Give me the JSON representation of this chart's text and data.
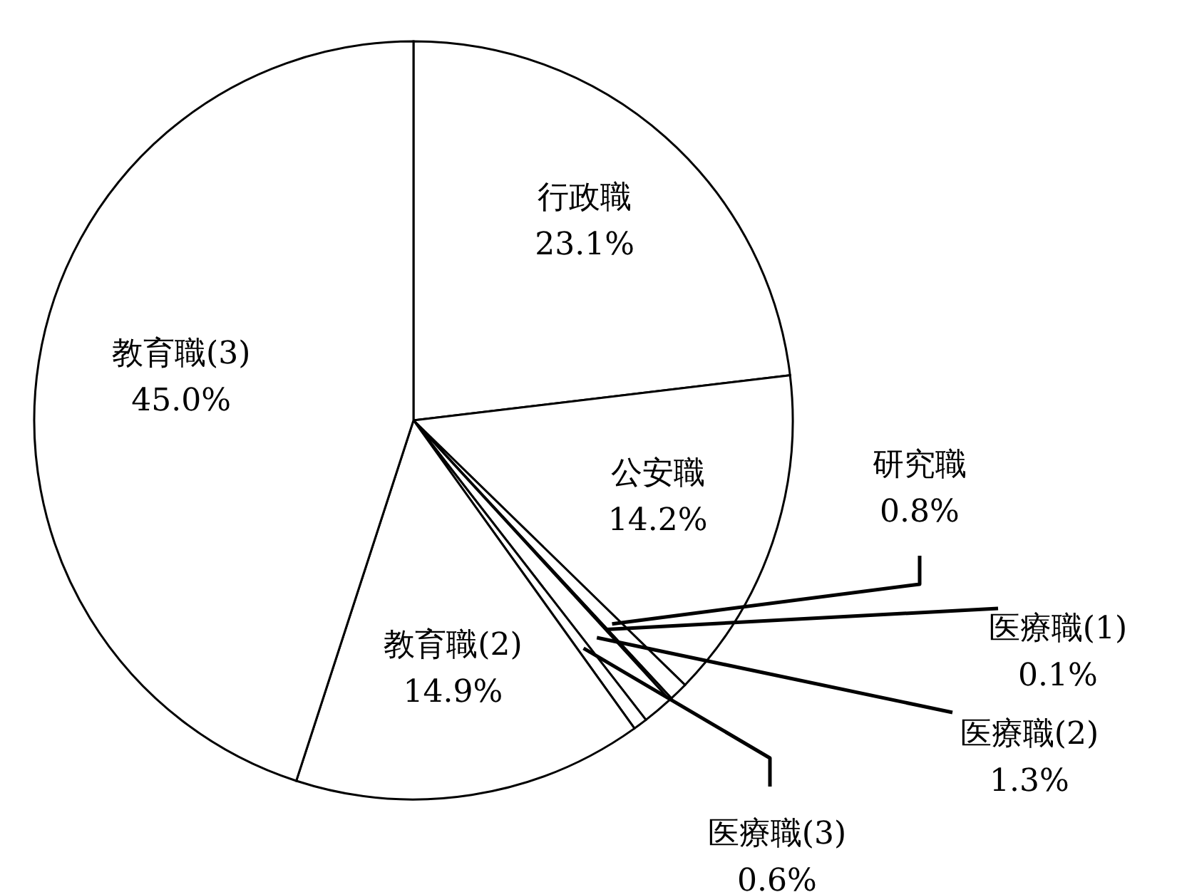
{
  "chart_data": {
    "type": "pie",
    "categories": [
      "行政職",
      "公安職",
      "研究職",
      "医療職(1)",
      "医療職(2)",
      "医療職(3)",
      "教育職(2)",
      "教育職(3)"
    ],
    "values": [
      23.1,
      14.2,
      0.8,
      0.1,
      1.3,
      0.6,
      14.9,
      45.0
    ],
    "value_labels": [
      "23.1%",
      "14.2%",
      "0.8%",
      "0.1%",
      "1.3%",
      "0.6%",
      "14.9%",
      "45.0%"
    ],
    "colors": [
      "#ffffff",
      "#ffffff",
      "#ffffff",
      "#ffffff",
      "#ffffff",
      "#ffffff",
      "#ffffff",
      "#ffffff"
    ]
  }
}
